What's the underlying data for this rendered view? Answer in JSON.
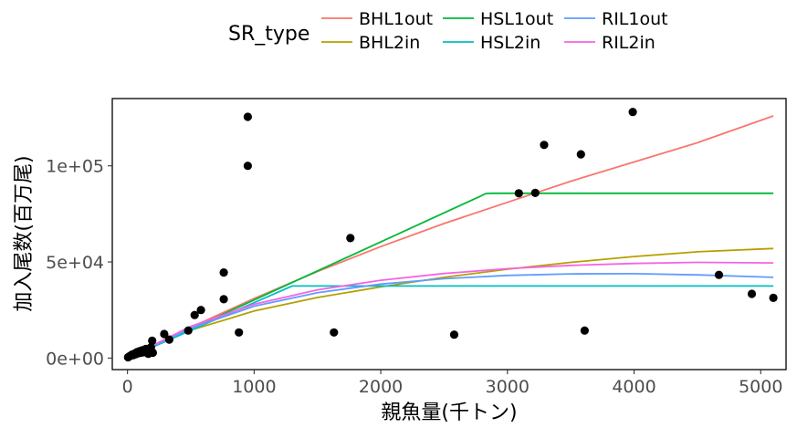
{
  "chart_data": {
    "type": "scatter",
    "xlabel": "親魚量(千トン)",
    "ylabel": "加入尾数(百万尾)",
    "xlim": [
      -120,
      5200
    ],
    "ylim": [
      -6000,
      135000
    ],
    "x_ticks": [
      0,
      1000,
      2000,
      3000,
      4000,
      5000
    ],
    "x_tick_labels": [
      "0",
      "1000",
      "2000",
      "3000",
      "4000",
      "5000"
    ],
    "y_ticks": [
      0,
      50000,
      100000
    ],
    "y_tick_labels": [
      "0e+00",
      "5e+04",
      "1e+05"
    ],
    "grid": false,
    "legend": {
      "title": "SR_type",
      "placement": "top",
      "entries": [
        {
          "label": "BHL1out",
          "color": "#f8766d"
        },
        {
          "label": "BHL2in",
          "color": "#b79f00"
        },
        {
          "label": "HSL1out",
          "color": "#00ba38"
        },
        {
          "label": "HSL2in",
          "color": "#00bfc4"
        },
        {
          "label": "RIL1out",
          "color": "#619cff"
        },
        {
          "label": "RIL2in",
          "color": "#f564e3"
        }
      ]
    },
    "points": [
      [
        5,
        400
      ],
      [
        15,
        900
      ],
      [
        25,
        1200
      ],
      [
        35,
        1800
      ],
      [
        45,
        1500
      ],
      [
        55,
        2300
      ],
      [
        65,
        2000
      ],
      [
        75,
        3100
      ],
      [
        85,
        2500
      ],
      [
        95,
        3600
      ],
      [
        105,
        2800
      ],
      [
        115,
        4000
      ],
      [
        125,
        3000
      ],
      [
        145,
        4800
      ],
      [
        165,
        2200
      ],
      [
        175,
        3800
      ],
      [
        185,
        5600
      ],
      [
        195,
        9000
      ],
      [
        200,
        2800
      ],
      [
        290,
        12500
      ],
      [
        330,
        9600
      ],
      [
        480,
        14300
      ],
      [
        530,
        22400
      ],
      [
        580,
        25000
      ],
      [
        760,
        30600
      ],
      [
        760,
        44500
      ],
      [
        880,
        13300
      ],
      [
        950,
        100000
      ],
      [
        950,
        125500
      ],
      [
        1630,
        13300
      ],
      [
        1760,
        62400
      ],
      [
        2580,
        12200
      ],
      [
        3090,
        85700
      ],
      [
        3220,
        85900
      ],
      [
        3290,
        110900
      ],
      [
        3580,
        106000
      ],
      [
        3610,
        14300
      ],
      [
        3990,
        128000
      ],
      [
        4670,
        43300
      ],
      [
        4930,
        33400
      ],
      [
        5100,
        31300
      ]
    ],
    "series": [
      {
        "name": "BHL1out",
        "color": "#f8766d",
        "x": [
          0,
          500,
          1000,
          1500,
          2000,
          2500,
          3000,
          3500,
          4000,
          4500,
          5100
        ],
        "y": [
          0,
          16000,
          31000,
          45000,
          58000,
          70000,
          81000,
          92000,
          102000,
          112000,
          126000
        ]
      },
      {
        "name": "BHL2in",
        "color": "#b79f00",
        "x": [
          0,
          500,
          1000,
          1500,
          2000,
          2500,
          3000,
          3500,
          4000,
          4500,
          5100
        ],
        "y": [
          0,
          14500,
          24500,
          31500,
          37000,
          42000,
          46200,
          49800,
          52800,
          55300,
          57000
        ]
      },
      {
        "name": "HSL1out",
        "color": "#00ba38",
        "x": [
          0,
          2780,
          2830,
          2880,
          5100
        ],
        "y": [
          0,
          84000,
          85600,
          85700,
          85700
        ]
      },
      {
        "name": "HSL2in",
        "color": "#00bfc4",
        "x": [
          0,
          1300,
          5100
        ],
        "y": [
          0,
          37500,
          37500
        ]
      },
      {
        "name": "RIL1out",
        "color": "#619cff",
        "x": [
          0,
          500,
          1000,
          1500,
          2000,
          2500,
          3000,
          3500,
          4000,
          4500,
          5100
        ],
        "y": [
          0,
          15500,
          27000,
          34000,
          38500,
          41300,
          43000,
          43800,
          43900,
          43300,
          42000
        ]
      },
      {
        "name": "RIL2in",
        "color": "#f564e3",
        "x": [
          0,
          500,
          1000,
          1500,
          2000,
          2500,
          3000,
          3500,
          4000,
          4500,
          5100
        ],
        "y": [
          0,
          16500,
          28000,
          35500,
          40500,
          44000,
          46500,
          48200,
          49200,
          49800,
          49500
        ]
      }
    ]
  }
}
